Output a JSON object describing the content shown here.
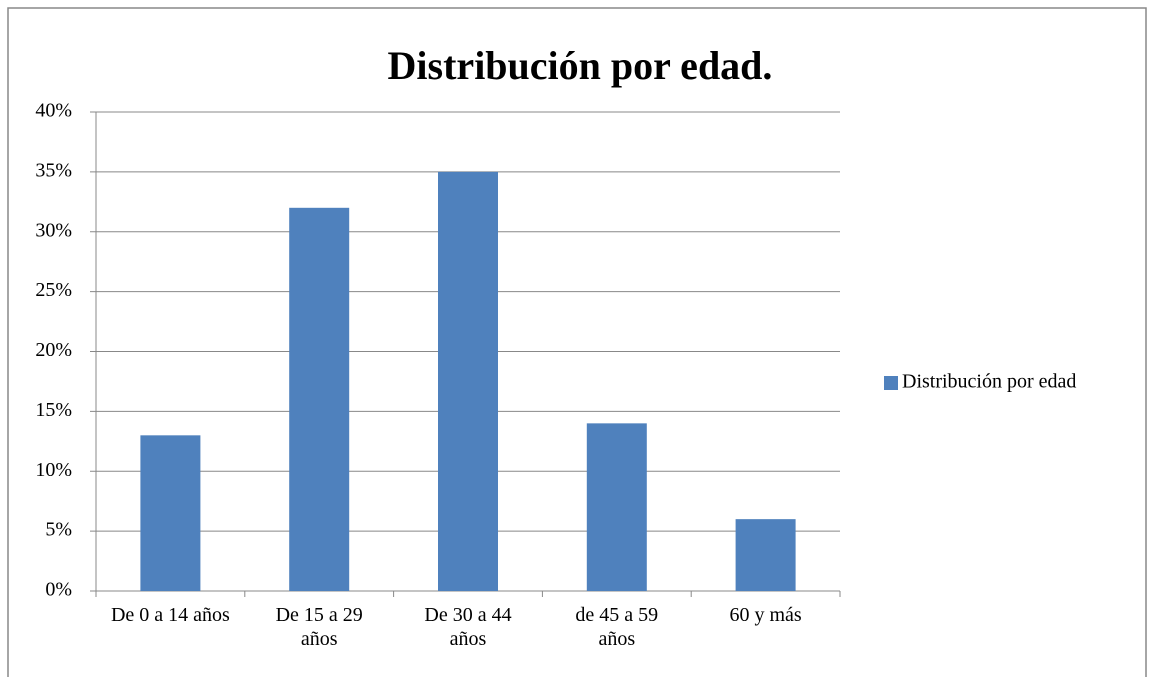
{
  "chart_data": {
    "type": "bar",
    "title": "Distribución por edad.",
    "categories": [
      "De 0 a 14 años",
      "De 15 a 29 años",
      "De 30 a 44 años",
      "de 45 a 59 años",
      "60 y más"
    ],
    "series": [
      {
        "name": "Distribución por edad",
        "color": "#4f81bd",
        "values": [
          13,
          32,
          35,
          14,
          6
        ]
      }
    ],
    "ylim": [
      0,
      40
    ],
    "yticks": [
      {
        "value": 0,
        "label": "0%"
      },
      {
        "value": 5,
        "label": "5%"
      },
      {
        "value": 10,
        "label": "10%"
      },
      {
        "value": 15,
        "label": "15%"
      },
      {
        "value": 20,
        "label": "20%"
      },
      {
        "value": 25,
        "label": "25%"
      },
      {
        "value": 30,
        "label": "30%"
      },
      {
        "value": 35,
        "label": "35%"
      },
      {
        "value": 40,
        "label": "40%"
      }
    ],
    "grid": true,
    "legend": "right"
  }
}
